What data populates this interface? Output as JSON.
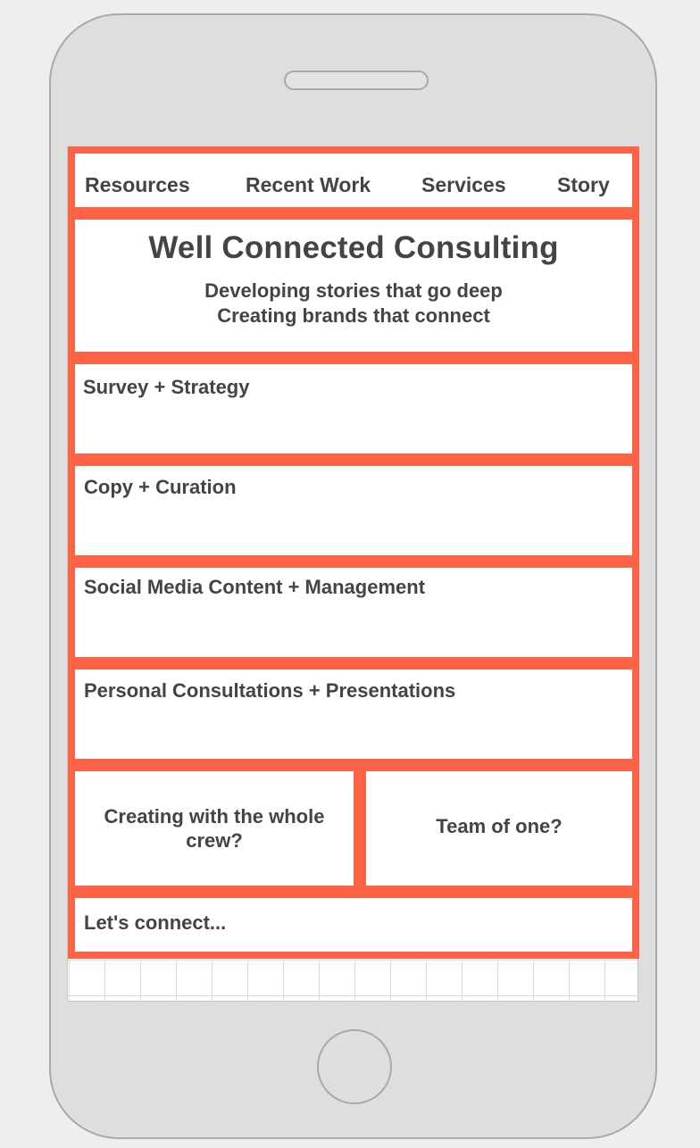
{
  "nav": {
    "items": [
      {
        "label": "Resources"
      },
      {
        "label": "Recent Work"
      },
      {
        "label": "Services"
      },
      {
        "label": "Story"
      }
    ]
  },
  "hero": {
    "title": "Well Connected Consulting",
    "subtitle_line1": "Developing stories that go deep",
    "subtitle_line2": "Creating brands that connect"
  },
  "services": [
    {
      "label": "Survey + Strategy"
    },
    {
      "label": "Copy + Curation"
    },
    {
      "label": "Social Media Content + Management"
    },
    {
      "label": "Personal Consultations + Presentations"
    }
  ],
  "split": {
    "left": "Creating with the whole crew?",
    "right": "Team of one?"
  },
  "footer": {
    "label": "Let's connect..."
  },
  "colors": {
    "accent": "#ff6347",
    "text": "#444444",
    "device": "#dedede"
  }
}
